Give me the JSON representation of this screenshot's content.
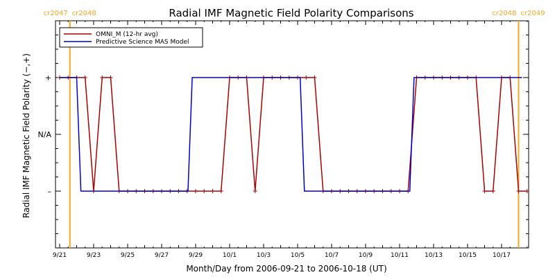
{
  "chart_data": {
    "type": "line",
    "title": "Radial IMF Magnetic Field Polarity Comparisons",
    "xlabel": "Month/Day from 2006-09-21 to 2006-10-18 (UT)",
    "ylabel": "Radial IMF Magnetic Field Polarity (−,+)",
    "xlim_days": [
      0,
      27
    ],
    "ylim": [
      -2,
      2
    ],
    "x_ticks": [
      {
        "day": 0,
        "label": "9/21"
      },
      {
        "day": 2,
        "label": "9/23"
      },
      {
        "day": 4,
        "label": "9/25"
      },
      {
        "day": 6,
        "label": "9/27"
      },
      {
        "day": 8,
        "label": "9/29"
      },
      {
        "day": 10,
        "label": "10/1"
      },
      {
        "day": 12,
        "label": "10/3"
      },
      {
        "day": 14,
        "label": "10/5"
      },
      {
        "day": 16,
        "label": "10/7"
      },
      {
        "day": 18,
        "label": "10/9"
      },
      {
        "day": 20,
        "label": "10/11"
      },
      {
        "day": 22,
        "label": "10/13"
      },
      {
        "day": 24,
        "label": "10/15"
      },
      {
        "day": 26,
        "label": "10/17"
      }
    ],
    "y_ticks": [
      {
        "value": 1,
        "label": "+"
      },
      {
        "value": 0,
        "label": "N/A"
      },
      {
        "value": -1,
        "label": "–"
      }
    ],
    "carrington_markers": [
      {
        "day": 0.6,
        "left": "cr2047",
        "right": "cr2048"
      },
      {
        "day": 27.0,
        "left": "cr2048",
        "right": "cr2049"
      }
    ],
    "legend": {
      "position": "top-left"
    },
    "series": [
      {
        "name": "OMNI_M (12-hr avg)",
        "color": "#aa0000",
        "markers": true,
        "points": [
          [
            0.0,
            1
          ],
          [
            0.5,
            1
          ],
          [
            1.0,
            1
          ],
          [
            1.5,
            1
          ],
          [
            2.0,
            -1
          ],
          [
            2.5,
            1
          ],
          [
            3.0,
            1
          ],
          [
            3.5,
            -1
          ],
          [
            4.0,
            -1
          ],
          [
            4.5,
            -1
          ],
          [
            5.0,
            -1
          ],
          [
            5.5,
            -1
          ],
          [
            6.0,
            -1
          ],
          [
            6.5,
            -1
          ],
          [
            7.0,
            -1
          ],
          [
            7.5,
            -1
          ],
          [
            8.0,
            -1
          ],
          [
            8.5,
            -1
          ],
          [
            9.0,
            -1
          ],
          [
            9.5,
            -1
          ],
          [
            10.0,
            1
          ],
          [
            10.5,
            1
          ],
          [
            11.0,
            1
          ],
          [
            11.5,
            -1
          ],
          [
            12.0,
            1
          ],
          [
            12.5,
            1
          ],
          [
            13.0,
            1
          ],
          [
            13.5,
            1
          ],
          [
            14.0,
            1
          ],
          [
            14.5,
            1
          ],
          [
            15.0,
            1
          ],
          [
            15.5,
            -1
          ],
          [
            16.0,
            -1
          ],
          [
            16.5,
            -1
          ],
          [
            17.0,
            -1
          ],
          [
            17.5,
            -1
          ],
          [
            18.0,
            -1
          ],
          [
            18.5,
            -1
          ],
          [
            19.0,
            -1
          ],
          [
            19.5,
            -1
          ],
          [
            20.0,
            -1
          ],
          [
            20.5,
            -1
          ],
          [
            21.0,
            1
          ],
          [
            21.5,
            1
          ],
          [
            22.0,
            1
          ],
          [
            22.5,
            1
          ],
          [
            23.0,
            1
          ],
          [
            23.5,
            1
          ],
          [
            24.0,
            1
          ],
          [
            24.5,
            1
          ],
          [
            25.0,
            -1
          ],
          [
            25.5,
            -1
          ],
          [
            26.0,
            1
          ],
          [
            26.5,
            1
          ],
          [
            27.0,
            -1
          ],
          [
            27.5,
            -1
          ]
        ]
      },
      {
        "name": "Predictive Science MAS Model",
        "color": "#0000cc",
        "markers": false,
        "points": [
          [
            0.0,
            1
          ],
          [
            1.0,
            1
          ],
          [
            1.25,
            -1
          ],
          [
            7.55,
            -1
          ],
          [
            7.8,
            1
          ],
          [
            14.15,
            1
          ],
          [
            14.4,
            -1
          ],
          [
            20.6,
            -1
          ],
          [
            20.85,
            1
          ],
          [
            27.2,
            1
          ]
        ]
      }
    ]
  }
}
